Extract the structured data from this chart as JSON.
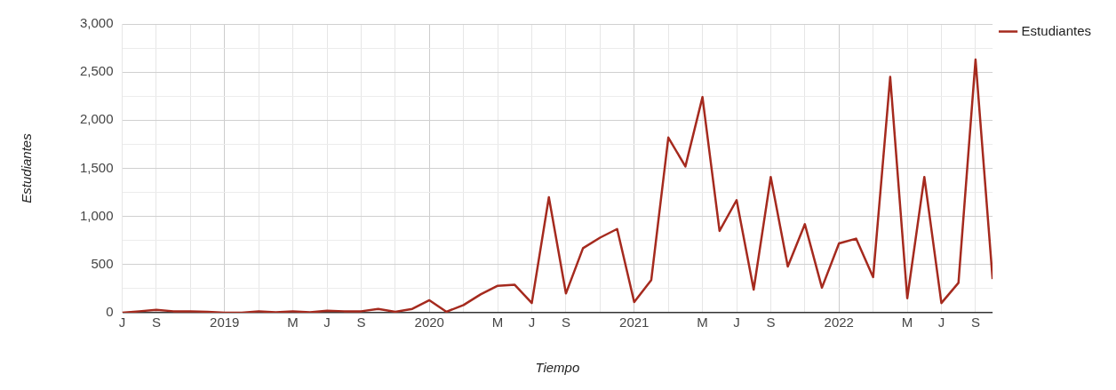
{
  "chart_data": {
    "type": "line",
    "xlabel": "Tiempo",
    "ylabel": "Estudiantes",
    "x": [
      "2018-07",
      "2018-08",
      "2018-09",
      "2018-10",
      "2018-11",
      "2018-12",
      "2019-01",
      "2019-02",
      "2019-03",
      "2019-04",
      "2019-05",
      "2019-06",
      "2019-07",
      "2019-08",
      "2019-09",
      "2019-10",
      "2019-11",
      "2019-12",
      "2020-01",
      "2020-02",
      "2020-03",
      "2020-04",
      "2020-05",
      "2020-06",
      "2020-07",
      "2020-08",
      "2020-09",
      "2020-10",
      "2020-11",
      "2020-12",
      "2021-01",
      "2021-02",
      "2021-03",
      "2021-04",
      "2021-05",
      "2021-06",
      "2021-07",
      "2021-08",
      "2021-09",
      "2021-10",
      "2021-11",
      "2021-12",
      "2022-01",
      "2022-02",
      "2022-03",
      "2022-04",
      "2022-05",
      "2022-06",
      "2022-07",
      "2022-08",
      "2022-09",
      "2022-10"
    ],
    "series": [
      {
        "name": "Estudiantes",
        "color": "#a52a1e",
        "values": [
          0,
          15,
          30,
          15,
          15,
          10,
          0,
          0,
          15,
          5,
          15,
          5,
          20,
          15,
          15,
          40,
          10,
          40,
          130,
          10,
          80,
          190,
          280,
          290,
          100,
          1200,
          200,
          670,
          780,
          870,
          110,
          340,
          1820,
          1520,
          2240,
          850,
          1170,
          240,
          1410,
          480,
          920,
          260,
          720,
          770,
          370,
          2450,
          150,
          1410,
          100,
          310,
          2630,
          350
        ]
      }
    ],
    "xlim": [
      "2018-07",
      "2022-10"
    ],
    "xticks": [
      {
        "value": "2018-07",
        "label": "J"
      },
      {
        "value": "2018-09",
        "label": "S"
      },
      {
        "value": "2018-11",
        "label": null
      },
      {
        "value": "2019-01",
        "label": "2019"
      },
      {
        "value": "2019-03",
        "label": null
      },
      {
        "value": "2019-05",
        "label": "M"
      },
      {
        "value": "2019-07",
        "label": "J"
      },
      {
        "value": "2019-09",
        "label": "S"
      },
      {
        "value": "2019-11",
        "label": null
      },
      {
        "value": "2020-01",
        "label": "2020"
      },
      {
        "value": "2020-03",
        "label": null
      },
      {
        "value": "2020-05",
        "label": "M"
      },
      {
        "value": "2020-07",
        "label": "J"
      },
      {
        "value": "2020-09",
        "label": "S"
      },
      {
        "value": "2020-11",
        "label": null
      },
      {
        "value": "2021-01",
        "label": "2021"
      },
      {
        "value": "2021-03",
        "label": null
      },
      {
        "value": "2021-05",
        "label": "M"
      },
      {
        "value": "2021-07",
        "label": "J"
      },
      {
        "value": "2021-09",
        "label": "S"
      },
      {
        "value": "2021-11",
        "label": null
      },
      {
        "value": "2022-01",
        "label": "2022"
      },
      {
        "value": "2022-03",
        "label": null
      },
      {
        "value": "2022-05",
        "label": "M"
      },
      {
        "value": "2022-07",
        "label": "J"
      },
      {
        "value": "2022-09",
        "label": "S"
      }
    ],
    "ylim": [
      0,
      3000
    ],
    "yticks": [
      0,
      {
        "value": 250,
        "label": null
      },
      500,
      {
        "value": 750,
        "label": null
      },
      {
        "value": 1000,
        "label": "1,000"
      },
      {
        "value": 1250,
        "label": null
      },
      {
        "value": 1500,
        "label": "1,500"
      },
      {
        "value": 1750,
        "label": null
      },
      {
        "value": 2000,
        "label": "2,000"
      },
      {
        "value": 2250,
        "label": null
      },
      {
        "value": 2500,
        "label": "2,500"
      },
      {
        "value": 2750,
        "label": null
      },
      {
        "value": 3000,
        "label": "3,000"
      }
    ],
    "grid": true,
    "legend": "top right",
    "marker": "none",
    "line_style": "solid"
  }
}
